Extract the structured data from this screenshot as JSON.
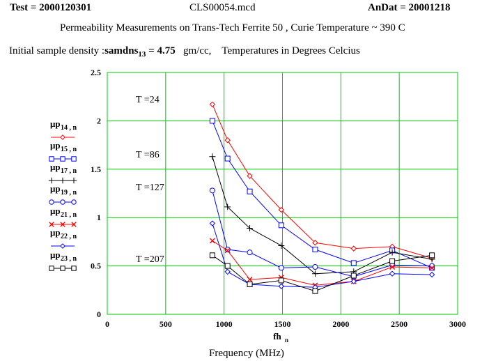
{
  "header": {
    "test": "Test = 2000120301",
    "file": "CLS00054.mcd",
    "andat": "AnDat = 20001218"
  },
  "subtitle": "Permeability Measurements on  Trans-Tech Ferrite 50 ,   Curie Temperature ~ 390 C",
  "density": {
    "prefix": "Initial sample density :",
    "var_main": "samdns",
    "var_sub": "13",
    "value": " = 4.75",
    "units": "gm/cc,",
    "note": "Temperatures in Degrees Celcius"
  },
  "annotations": [
    "T =24",
    "T =86",
    "T =127",
    "T =207"
  ],
  "chart_data": {
    "type": "line",
    "xlabel": "fh",
    "xlabel_sub": "n",
    "xlabel2": "Frequency (MHz)",
    "xlim": [
      0,
      3000
    ],
    "ylim": [
      0,
      2.5
    ],
    "xticks": [
      "0",
      "500",
      "1000",
      "1500",
      "2000",
      "2500",
      "3000"
    ],
    "yticks": [
      "0",
      "0.5",
      "1",
      "1.5",
      "2",
      "2.5"
    ],
    "grid": true,
    "grid_color": "#00cc00",
    "legend_position": "left",
    "x": [
      900,
      1030,
      1220,
      1490,
      1780,
      2110,
      2440,
      2780
    ],
    "series": [
      {
        "name": "μp",
        "sub": "14 , n",
        "color": "#ff0000",
        "marker": "diamond",
        "values": [
          2.17,
          1.8,
          1.43,
          1.08,
          0.74,
          0.68,
          0.7,
          0.58
        ]
      },
      {
        "name": "μp",
        "sub": "15 , n",
        "color": "#0000ff",
        "marker": "square",
        "values": [
          2.0,
          1.61,
          1.27,
          0.92,
          0.67,
          0.53,
          0.66,
          0.48
        ]
      },
      {
        "name": "μp",
        "sub": "17 , n",
        "color": "#000000",
        "marker": "plus",
        "values": [
          1.63,
          1.11,
          0.89,
          0.71,
          0.42,
          0.44,
          0.64,
          0.57
        ]
      },
      {
        "name": "μp",
        "sub": "19 , n",
        "color": "#0000ff",
        "marker": "circle",
        "values": [
          1.28,
          0.67,
          0.64,
          0.48,
          0.49,
          0.39,
          0.51,
          0.5
        ]
      },
      {
        "name": "μp",
        "sub": "21 , n",
        "color": "#ff0000",
        "marker": "x",
        "values": [
          0.76,
          0.66,
          0.36,
          0.38,
          0.3,
          0.34,
          0.49,
          0.48
        ]
      },
      {
        "name": "μp",
        "sub": "22 , n",
        "color": "#0000ff",
        "marker": "diamond",
        "values": [
          0.94,
          0.44,
          0.31,
          0.29,
          0.28,
          0.34,
          0.42,
          0.41
        ]
      },
      {
        "name": "μp",
        "sub": "23 , n",
        "color": "#000000",
        "marker": "square",
        "values": [
          0.61,
          0.5,
          0.31,
          0.35,
          0.24,
          0.4,
          0.55,
          0.61
        ]
      }
    ]
  }
}
